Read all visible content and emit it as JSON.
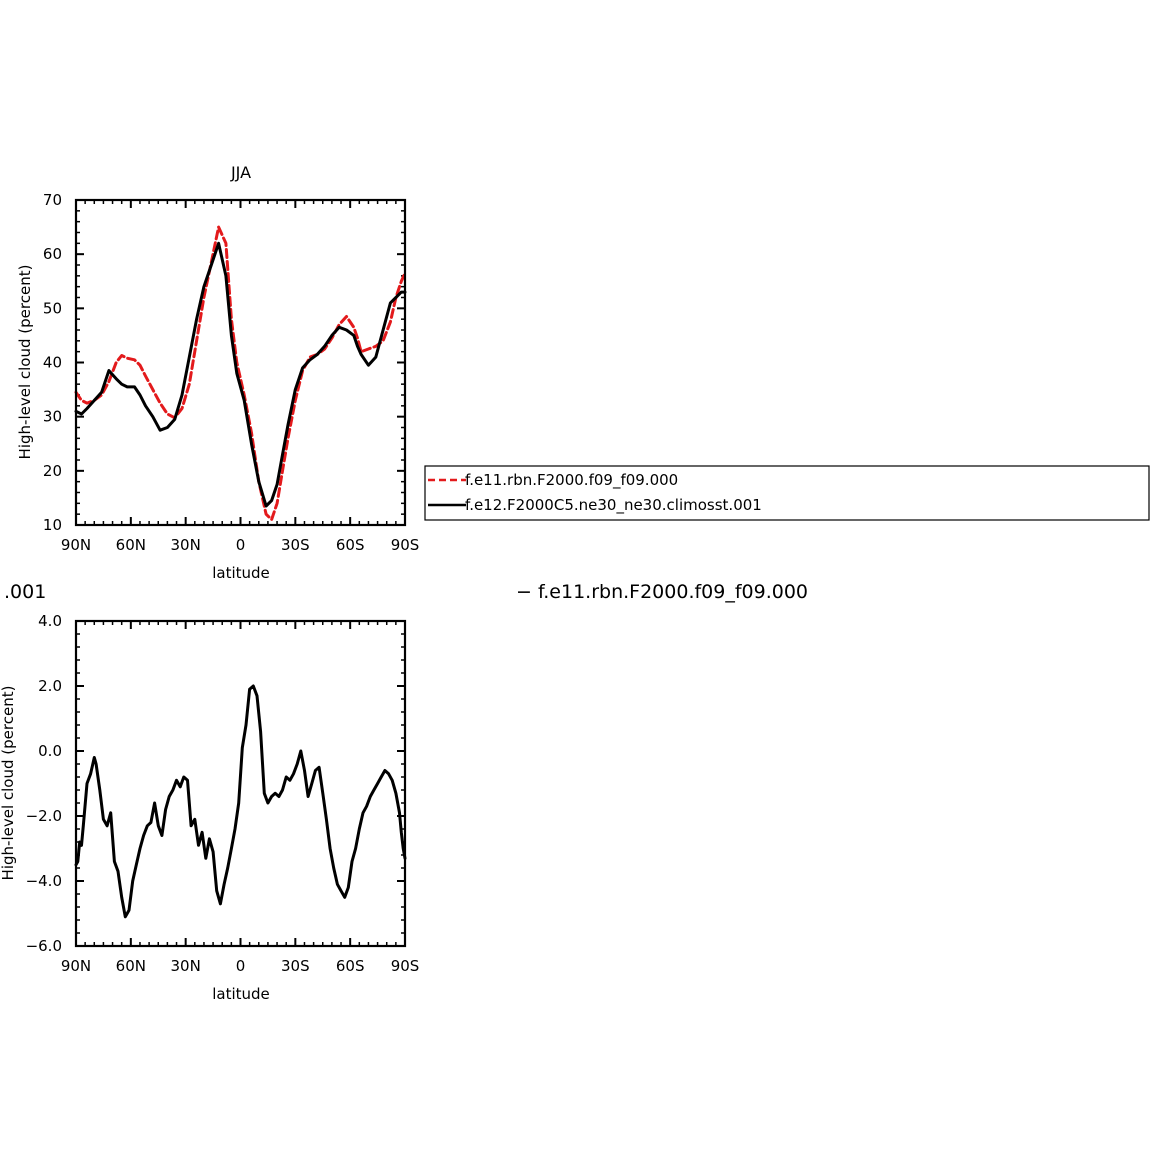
{
  "chart_data": [
    {
      "type": "line",
      "title": "JJA",
      "xlabel": "latitude",
      "ylabel": "High-level cloud (percent)",
      "xlim": [
        90,
        -90
      ],
      "ylim": [
        10,
        70
      ],
      "xticks": [
        90,
        60,
        30,
        0,
        -30,
        -60,
        -90
      ],
      "xtick_labels": [
        "90N",
        "60N",
        "30N",
        "0",
        "30S",
        "60S",
        "90S"
      ],
      "yticks": [
        10,
        20,
        30,
        40,
        50,
        60,
        70
      ],
      "ytick_labels": [
        "10",
        "20",
        "30",
        "40",
        "50",
        "60",
        "70"
      ],
      "legend": "right",
      "series": [
        {
          "name": "f.e11.rbn.F2000.f09_f09.000",
          "color": "#e31a1c",
          "dash": true,
          "x": [
            90,
            87,
            84,
            80,
            76,
            72,
            68,
            65,
            62,
            58,
            55,
            52,
            48,
            44,
            40,
            36,
            32,
            28,
            24,
            20,
            16,
            12,
            8,
            5,
            2,
            -2,
            -6,
            -10,
            -14,
            -17,
            -20,
            -23,
            -26,
            -30,
            -34,
            -38,
            -42,
            -46,
            -50,
            -54,
            -58,
            -62,
            -64,
            -66,
            -70,
            -74,
            -78,
            -82,
            -85,
            -88,
            -90
          ],
          "y": [
            34.5,
            33,
            32.5,
            33,
            34,
            36.5,
            40,
            41.3,
            40.8,
            40.5,
            39.5,
            37.5,
            35,
            32.5,
            30.5,
            29.8,
            31.5,
            36,
            44,
            52,
            58.5,
            65,
            62,
            48,
            40,
            34,
            27,
            18,
            12,
            11,
            14,
            20,
            26,
            33,
            38.5,
            41,
            41.5,
            42.5,
            44.5,
            47,
            48.5,
            46.5,
            44.5,
            42,
            42.5,
            43,
            44,
            47.5,
            52,
            55,
            56.5
          ]
        },
        {
          "name": "f.e12.F2000C5.ne30_ne30.climosst.001",
          "color": "#000000",
          "dash": false,
          "x": [
            90,
            87,
            84,
            80,
            76,
            72,
            68,
            65,
            62,
            58,
            55,
            52,
            48,
            44,
            40,
            36,
            32,
            28,
            24,
            20,
            16,
            12,
            8,
            5,
            2,
            -2,
            -6,
            -10,
            -14,
            -17,
            -20,
            -23,
            -26,
            -30,
            -34,
            -38,
            -42,
            -46,
            -50,
            -54,
            -58,
            -62,
            -64,
            -66,
            -70,
            -74,
            -78,
            -82,
            -85,
            -88,
            -90
          ],
          "y": [
            31,
            30.5,
            31.5,
            33,
            34.5,
            38.5,
            37,
            36,
            35.5,
            35.5,
            34,
            32,
            30,
            27.5,
            28,
            29.5,
            34,
            41,
            48,
            54,
            58,
            62,
            56,
            45,
            38,
            33,
            25,
            18,
            13.5,
            14.5,
            17.5,
            23,
            28.5,
            35,
            39,
            40.5,
            41.5,
            43,
            45,
            46.5,
            46,
            45,
            43,
            41.5,
            39.5,
            41,
            46,
            51,
            52,
            53,
            53
          ]
        }
      ]
    },
    {
      "type": "line",
      "title": "",
      "xlabel": "latitude",
      "ylabel": "High-level cloud (percent)",
      "xlim": [
        90,
        -90
      ],
      "ylim": [
        -6,
        4
      ],
      "xticks": [
        90,
        60,
        30,
        0,
        -30,
        -60,
        -90
      ],
      "xtick_labels": [
        "90N",
        "60N",
        "30N",
        "0",
        "30S",
        "60S",
        "90S"
      ],
      "yticks": [
        -6,
        -4,
        -2,
        0,
        2,
        4
      ],
      "ytick_labels": [
        "−6.0",
        "−4.0",
        "−2.0",
        "0.0",
        "2.0",
        "4.0"
      ],
      "series": [
        {
          "name": "",
          "color": "#000000",
          "dash": false,
          "x": [
            90,
            89,
            88,
            87,
            86,
            84,
            82,
            80,
            79,
            77,
            75,
            73,
            71,
            69,
            67,
            65,
            63,
            61,
            59,
            57,
            55,
            53,
            51,
            49,
            47,
            45,
            43,
            41,
            39,
            37,
            35,
            33,
            31,
            29,
            27,
            25,
            23,
            21,
            19,
            17,
            15,
            13,
            11,
            9,
            7,
            5,
            3,
            1,
            -1,
            -3,
            -5,
            -7,
            -9,
            -11,
            -13,
            -15,
            -17,
            -19,
            -21,
            -23,
            -25,
            -27,
            -29,
            -31,
            -33,
            -35,
            -37,
            -39,
            -41,
            -43,
            -45,
            -47,
            -49,
            -51,
            -53,
            -55,
            -57,
            -59,
            -61,
            -63,
            -65,
            -67,
            -69,
            -71,
            -73,
            -75,
            -77,
            -79,
            -81,
            -83,
            -85,
            -87,
            -88,
            -89,
            -90
          ],
          "y": [
            -3.5,
            -3.4,
            -2.8,
            -2.9,
            -2.3,
            -1,
            -0.7,
            -0.2,
            -0.4,
            -1.2,
            -2.1,
            -2.3,
            -1.9,
            -3.4,
            -3.7,
            -4.5,
            -5.1,
            -4.9,
            -4.0,
            -3.5,
            -3.0,
            -2.6,
            -2.3,
            -2.2,
            -1.6,
            -2.3,
            -2.6,
            -1.8,
            -1.4,
            -1.2,
            -0.9,
            -1.1,
            -0.8,
            -0.9,
            -2.3,
            -2.1,
            -2.9,
            -2.5,
            -3.3,
            -2.7,
            -3.1,
            -4.3,
            -4.7,
            -4.1,
            -3.6,
            -3.0,
            -2.4,
            -1.6,
            0.1,
            0.8,
            1.9,
            2.0,
            1.7,
            0.6,
            -1.3,
            -1.6,
            -1.4,
            -1.3,
            -1.4,
            -1.2,
            -0.8,
            -0.9,
            -0.7,
            -0.4,
            0.0,
            -0.6,
            -1.4,
            -1.0,
            -0.6,
            -0.5,
            -1.3,
            -2.1,
            -3.0,
            -3.6,
            -4.1,
            -4.3,
            -4.5,
            -4.2,
            -3.4,
            -3.0,
            -2.4,
            -1.9,
            -1.7,
            -1.4,
            -1.2,
            -1.0,
            -0.8,
            -0.6,
            -0.7,
            -0.9,
            -1.3,
            -1.9,
            -2.5,
            -3.0,
            -3.3
          ]
        }
      ]
    }
  ],
  "panels": {
    "top": {
      "title": "JJA",
      "xlabel": "latitude",
      "ylabel": "High-level cloud  (percent)",
      "legend": [
        "f.e11.rbn.F2000.f09_f09.000",
        "f.e12.F2000C5.ne30_ne30.climosst.001"
      ]
    },
    "bottom": {
      "left_title": ".001",
      "right_title": "−  f.e11.rbn.F2000.f09_f09.000",
      "xlabel": "latitude",
      "ylabel": "High-level cloud  (percent)"
    }
  }
}
